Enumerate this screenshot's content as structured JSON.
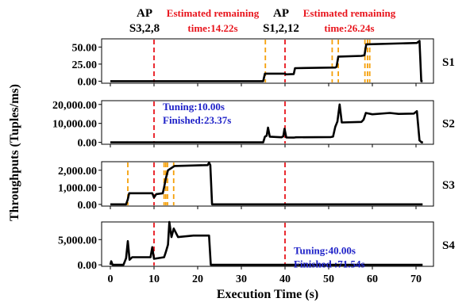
{
  "chart_data": {
    "type": "line",
    "xlabel": "Execution Time (s)",
    "ylabel": "Throughputs (Tuples/ms)",
    "xlim": [
      -2,
      74
    ],
    "x_ticks": [
      0,
      10,
      20,
      30,
      40,
      50,
      60,
      70
    ],
    "colors": {
      "series": "#000000",
      "red_marker": "#e8141c",
      "orange_marker": "#f5a00a",
      "annotation_blue": "#1f22c8",
      "annotation_red": "#e8141c"
    },
    "top_annotations": [
      {
        "ap_label": "AP",
        "ap_value": "S3,2,8",
        "remaining_label": "Estimated remaining",
        "remaining_value": "time:14.22s"
      },
      {
        "ap_label": "AP",
        "ap_value": "S1,2,12",
        "remaining_label": "Estimated remaining",
        "remaining_value": "time:26.24s"
      }
    ],
    "panels": [
      {
        "name": "S1",
        "ylim": [
          -3,
          62
        ],
        "yticks": [
          0,
          25,
          50
        ],
        "ytick_labels": [
          "0.00",
          "25.00",
          "50.00"
        ],
        "red_lines": [
          10,
          40
        ],
        "orange_lines": [
          35.5,
          50.8,
          52.2,
          58.3,
          58.9,
          59.4
        ],
        "points": [
          [
            0,
            0
          ],
          [
            35,
            0
          ],
          [
            35.4,
            11
          ],
          [
            40,
            11
          ],
          [
            40.2,
            10
          ],
          [
            42,
            10.5
          ],
          [
            42.3,
            19
          ],
          [
            51.5,
            20
          ],
          [
            51.8,
            21
          ],
          [
            52.2,
            36
          ],
          [
            57.5,
            37
          ],
          [
            58.2,
            38
          ],
          [
            58.6,
            54
          ],
          [
            70.2,
            56
          ],
          [
            70.8,
            59
          ],
          [
            71.2,
            0
          ],
          [
            71.5,
            0
          ]
        ]
      },
      {
        "name": "S2",
        "ylim": [
          -1000,
          22000
        ],
        "yticks": [
          0,
          10000,
          20000
        ],
        "ytick_labels": [
          "0.00",
          "10,000.00",
          "20,000.00"
        ],
        "red_lines": [
          10,
          40
        ],
        "orange_lines": [],
        "points": [
          [
            0,
            0
          ],
          [
            35,
            0
          ],
          [
            35.4,
            3000
          ],
          [
            35.8,
            3500
          ],
          [
            36.1,
            7800
          ],
          [
            36.5,
            3000
          ],
          [
            39.2,
            2700
          ],
          [
            39.6,
            3200
          ],
          [
            39.9,
            7200
          ],
          [
            40.3,
            2600
          ],
          [
            42,
            2500
          ],
          [
            42.5,
            2700
          ],
          [
            50.5,
            2800
          ],
          [
            51,
            3000
          ],
          [
            51.5,
            8200
          ],
          [
            52,
            11000
          ],
          [
            52.5,
            20000
          ],
          [
            53,
            10500
          ],
          [
            57.5,
            10800
          ],
          [
            58,
            12000
          ],
          [
            58.5,
            15500
          ],
          [
            60,
            14800
          ],
          [
            64,
            15500
          ],
          [
            66,
            15000
          ],
          [
            69.5,
            15200
          ],
          [
            70.2,
            16500
          ],
          [
            70.8,
            1000
          ],
          [
            71.3,
            0
          ],
          [
            71.6,
            0
          ]
        ],
        "text_annotation": {
          "lines": [
            "Tuning:10.00s",
            "Finished:23.37s"
          ],
          "x": 12,
          "y": 17000
        }
      },
      {
        "name": "S3",
        "ylim": [
          -100,
          2500
        ],
        "yticks": [
          0,
          1000,
          2000
        ],
        "ytick_labels": [
          "0.00",
          "1,000.00",
          "2,000.00"
        ],
        "red_lines": [
          10,
          40
        ],
        "orange_lines": [
          4,
          12.3,
          12.7,
          13.1,
          14.5
        ],
        "points": [
          [
            0,
            0
          ],
          [
            3.6,
            0
          ],
          [
            4,
            300
          ],
          [
            4.3,
            650
          ],
          [
            9.6,
            650
          ],
          [
            10,
            400
          ],
          [
            10.5,
            600
          ],
          [
            12,
            650
          ],
          [
            12.3,
            1000
          ],
          [
            12.7,
            1500
          ],
          [
            13.2,
            2000
          ],
          [
            14.7,
            2250
          ],
          [
            22.3,
            2300
          ],
          [
            22.6,
            2450
          ],
          [
            22.9,
            2300
          ],
          [
            23.3,
            0
          ],
          [
            71.5,
            0
          ]
        ]
      },
      {
        "name": "S4",
        "ylim": [
          -300,
          8500
        ],
        "yticks": [
          0,
          5000
        ],
        "ytick_labels": [
          "0.00",
          "5,000.00"
        ],
        "red_lines": [
          10,
          40
        ],
        "orange_lines": [],
        "points": [
          [
            0,
            0
          ],
          [
            0.2,
            700
          ],
          [
            0.5,
            0
          ],
          [
            3,
            0
          ],
          [
            3.6,
            1300
          ],
          [
            4,
            4700
          ],
          [
            4.4,
            1000
          ],
          [
            5,
            1500
          ],
          [
            9.2,
            1500
          ],
          [
            9.6,
            3500
          ],
          [
            10,
            1200
          ],
          [
            12.3,
            1500
          ],
          [
            12.7,
            2500
          ],
          [
            13.2,
            4000
          ],
          [
            13.5,
            8500
          ],
          [
            14,
            5500
          ],
          [
            14.5,
            7200
          ],
          [
            15.5,
            5500
          ],
          [
            19,
            5800
          ],
          [
            22.6,
            5800
          ],
          [
            23,
            0
          ],
          [
            71.5,
            0
          ]
        ],
        "text_annotation": {
          "lines": [
            "Tuning:40.00s",
            "Finished :71.54s"
          ],
          "x": 42,
          "y": 2100
        }
      }
    ]
  }
}
